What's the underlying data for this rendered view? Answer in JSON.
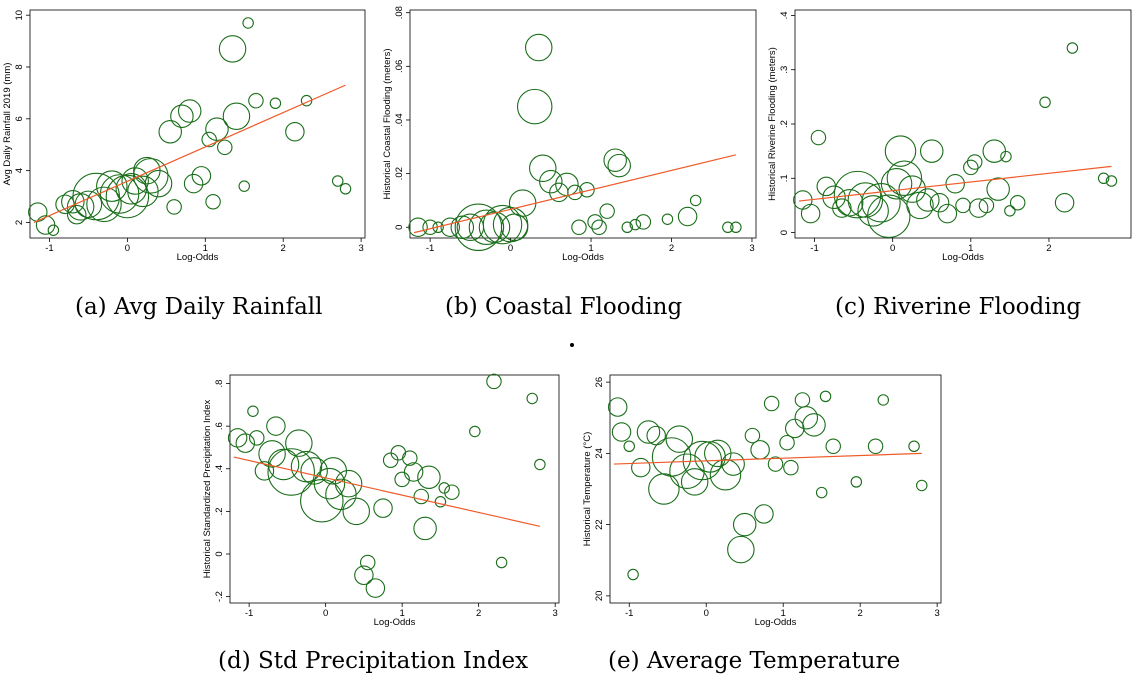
{
  "figure": {
    "separator": "."
  },
  "chart_data": [
    {
      "type": "scatter",
      "caption": "(a) Avg Daily Rainfall",
      "xlabel": "Log-Odds",
      "ylabel": "Avg Daily Rainfall 2019 (mm)",
      "xlim": [
        -1.25,
        3.05
      ],
      "ylim": [
        1.4,
        10.2
      ],
      "xticks": [
        -1,
        0,
        1,
        2,
        3
      ],
      "yticks": [
        2,
        4,
        6,
        8,
        10
      ],
      "xtick_labels": [
        "-1",
        "0",
        "1",
        "2",
        "3"
      ],
      "ytick_labels": [
        "2",
        "4",
        "6",
        "8",
        "10"
      ],
      "marker_color": "#1a6e1a",
      "fit_color": "#f05a28",
      "fit_line": [
        [
          -1.2,
          2.0
        ],
        [
          2.8,
          7.3
        ]
      ],
      "points": [
        {
          "x": -1.15,
          "y": 2.4,
          "s": 3
        },
        {
          "x": -1.05,
          "y": 1.9,
          "s": 3
        },
        {
          "x": -0.95,
          "y": 1.7,
          "s": 1
        },
        {
          "x": -0.8,
          "y": 2.7,
          "s": 3
        },
        {
          "x": -0.7,
          "y": 2.8,
          "s": 4
        },
        {
          "x": -0.65,
          "y": 2.3,
          "s": 3
        },
        {
          "x": -0.6,
          "y": 2.6,
          "s": 5
        },
        {
          "x": -0.5,
          "y": 2.7,
          "s": 5
        },
        {
          "x": -0.4,
          "y": 3.0,
          "s": 10
        },
        {
          "x": -0.3,
          "y": 2.7,
          "s": 7
        },
        {
          "x": -0.2,
          "y": 3.4,
          "s": 6
        },
        {
          "x": -0.1,
          "y": 3.1,
          "s": 8
        },
        {
          "x": 0.0,
          "y": 3.0,
          "s": 9
        },
        {
          "x": 0.05,
          "y": 3.3,
          "s": 6
        },
        {
          "x": 0.1,
          "y": 3.6,
          "s": 5
        },
        {
          "x": 0.2,
          "y": 3.2,
          "s": 6
        },
        {
          "x": 0.25,
          "y": 4.0,
          "s": 5
        },
        {
          "x": 0.3,
          "y": 3.8,
          "s": 7
        },
        {
          "x": 0.4,
          "y": 3.5,
          "s": 5
        },
        {
          "x": 0.55,
          "y": 5.5,
          "s": 4
        },
        {
          "x": 0.6,
          "y": 2.6,
          "s": 2
        },
        {
          "x": 0.7,
          "y": 6.1,
          "s": 4
        },
        {
          "x": 0.8,
          "y": 6.3,
          "s": 4
        },
        {
          "x": 0.85,
          "y": 3.5,
          "s": 3
        },
        {
          "x": 0.95,
          "y": 3.8,
          "s": 3
        },
        {
          "x": 1.05,
          "y": 5.2,
          "s": 2
        },
        {
          "x": 1.1,
          "y": 2.8,
          "s": 2
        },
        {
          "x": 1.15,
          "y": 5.6,
          "s": 4
        },
        {
          "x": 1.25,
          "y": 4.9,
          "s": 2
        },
        {
          "x": 1.35,
          "y": 8.7,
          "s": 5
        },
        {
          "x": 1.4,
          "y": 6.1,
          "s": 5
        },
        {
          "x": 1.5,
          "y": 3.4,
          "s": 1
        },
        {
          "x": 1.55,
          "y": 9.7,
          "s": 1
        },
        {
          "x": 1.65,
          "y": 6.7,
          "s": 2
        },
        {
          "x": 1.9,
          "y": 6.6,
          "s": 1
        },
        {
          "x": 2.15,
          "y": 5.5,
          "s": 3
        },
        {
          "x": 2.3,
          "y": 6.7,
          "s": 1
        },
        {
          "x": 2.7,
          "y": 3.6,
          "s": 1
        },
        {
          "x": 2.8,
          "y": 3.3,
          "s": 1
        }
      ]
    },
    {
      "type": "scatter",
      "caption": "(b) Coastal Flooding",
      "xlabel": "Log-Odds",
      "ylabel": "Historical Coastal Flooding (meters)",
      "xlim": [
        -1.25,
        3.05
      ],
      "ylim": [
        -0.004,
        0.081
      ],
      "xticks": [
        -1,
        0,
        1,
        2,
        3
      ],
      "yticks": [
        0,
        0.02,
        0.04,
        0.06,
        0.08
      ],
      "xtick_labels": [
        "-1",
        "0",
        "1",
        "2",
        "3"
      ],
      "ytick_labels": [
        "0",
        ".02",
        ".04",
        ".06",
        ".08"
      ],
      "marker_color": "#1a6e1a",
      "fit_color": "#f05a28",
      "fit_line": [
        [
          -1.2,
          -0.002
        ],
        [
          2.8,
          0.027
        ]
      ],
      "points": [
        {
          "x": -1.15,
          "y": 0.0,
          "s": 3
        },
        {
          "x": -1.0,
          "y": 0.0,
          "s": 2
        },
        {
          "x": -0.9,
          "y": 0.0,
          "s": 1
        },
        {
          "x": -0.75,
          "y": 0.0,
          "s": 3
        },
        {
          "x": -0.6,
          "y": 0.0,
          "s": 4
        },
        {
          "x": -0.5,
          "y": 0.0,
          "s": 5
        },
        {
          "x": -0.4,
          "y": 0.0,
          "s": 10
        },
        {
          "x": -0.3,
          "y": 0.0,
          "s": 7
        },
        {
          "x": -0.2,
          "y": 0.0,
          "s": 6
        },
        {
          "x": -0.1,
          "y": 0.001,
          "s": 8
        },
        {
          "x": 0.0,
          "y": 0.001,
          "s": 7
        },
        {
          "x": 0.05,
          "y": 0.0,
          "s": 5
        },
        {
          "x": 0.15,
          "y": 0.009,
          "s": 5
        },
        {
          "x": 0.3,
          "y": 0.045,
          "s": 7
        },
        {
          "x": 0.35,
          "y": 0.067,
          "s": 5
        },
        {
          "x": 0.4,
          "y": 0.022,
          "s": 5
        },
        {
          "x": 0.5,
          "y": 0.017,
          "s": 4
        },
        {
          "x": 0.6,
          "y": 0.013,
          "s": 3
        },
        {
          "x": 0.7,
          "y": 0.016,
          "s": 4
        },
        {
          "x": 0.8,
          "y": 0.013,
          "s": 2
        },
        {
          "x": 0.85,
          "y": 0.0,
          "s": 2
        },
        {
          "x": 0.95,
          "y": 0.014,
          "s": 2
        },
        {
          "x": 1.05,
          "y": 0.002,
          "s": 2
        },
        {
          "x": 1.1,
          "y": 0.0,
          "s": 2
        },
        {
          "x": 1.2,
          "y": 0.006,
          "s": 2
        },
        {
          "x": 1.3,
          "y": 0.025,
          "s": 4
        },
        {
          "x": 1.35,
          "y": 0.023,
          "s": 4
        },
        {
          "x": 1.45,
          "y": 0.0,
          "s": 1
        },
        {
          "x": 1.55,
          "y": 0.001,
          "s": 1
        },
        {
          "x": 1.65,
          "y": 0.002,
          "s": 2
        },
        {
          "x": 1.95,
          "y": 0.003,
          "s": 1
        },
        {
          "x": 2.2,
          "y": 0.004,
          "s": 3
        },
        {
          "x": 2.3,
          "y": 0.01,
          "s": 1
        },
        {
          "x": 2.7,
          "y": 0.0,
          "s": 1
        },
        {
          "x": 2.8,
          "y": 0.0,
          "s": 1
        }
      ]
    },
    {
      "type": "scatter",
      "caption": "(c) Riverine Flooding",
      "xlabel": "Log-Odds",
      "ylabel": "Historical Riverine Flooding (meters)",
      "xlim": [
        -1.25,
        3.05
      ],
      "ylim": [
        -0.01,
        0.41
      ],
      "xticks": [
        -1,
        0,
        1,
        2
      ],
      "yticks": [
        0,
        0.1,
        0.2,
        0.3,
        0.4
      ],
      "xtick_labels": [
        "-1",
        "0",
        "1",
        "2"
      ],
      "ytick_labels": [
        "0",
        ".1",
        ".2",
        ".3",
        ".4"
      ],
      "marker_color": "#1a6e1a",
      "fit_color": "#f05a28",
      "fit_line": [
        [
          -1.2,
          0.058
        ],
        [
          2.8,
          0.122
        ]
      ],
      "points": [
        {
          "x": -1.15,
          "y": 0.06,
          "s": 3
        },
        {
          "x": -1.05,
          "y": 0.035,
          "s": 3
        },
        {
          "x": -0.95,
          "y": 0.175,
          "s": 2
        },
        {
          "x": -0.85,
          "y": 0.085,
          "s": 3
        },
        {
          "x": -0.75,
          "y": 0.065,
          "s": 4
        },
        {
          "x": -0.65,
          "y": 0.045,
          "s": 3
        },
        {
          "x": -0.55,
          "y": 0.055,
          "s": 5
        },
        {
          "x": -0.45,
          "y": 0.07,
          "s": 10
        },
        {
          "x": -0.35,
          "y": 0.06,
          "s": 7
        },
        {
          "x": -0.25,
          "y": 0.04,
          "s": 6
        },
        {
          "x": -0.15,
          "y": 0.055,
          "s": 8
        },
        {
          "x": -0.05,
          "y": 0.03,
          "s": 9
        },
        {
          "x": 0.05,
          "y": 0.09,
          "s": 6
        },
        {
          "x": 0.1,
          "y": 0.15,
          "s": 6
        },
        {
          "x": 0.15,
          "y": 0.1,
          "s": 7
        },
        {
          "x": 0.25,
          "y": 0.08,
          "s": 5
        },
        {
          "x": 0.35,
          "y": 0.05,
          "s": 5
        },
        {
          "x": 0.45,
          "y": 0.06,
          "s": 4
        },
        {
          "x": 0.5,
          "y": 0.15,
          "s": 4
        },
        {
          "x": 0.6,
          "y": 0.055,
          "s": 3
        },
        {
          "x": 0.7,
          "y": 0.035,
          "s": 3
        },
        {
          "x": 0.8,
          "y": 0.09,
          "s": 3
        },
        {
          "x": 0.9,
          "y": 0.05,
          "s": 2
        },
        {
          "x": 1.0,
          "y": 0.12,
          "s": 2
        },
        {
          "x": 1.05,
          "y": 0.13,
          "s": 2
        },
        {
          "x": 1.1,
          "y": 0.045,
          "s": 3
        },
        {
          "x": 1.2,
          "y": 0.05,
          "s": 2
        },
        {
          "x": 1.3,
          "y": 0.15,
          "s": 4
        },
        {
          "x": 1.35,
          "y": 0.08,
          "s": 4
        },
        {
          "x": 1.45,
          "y": 0.14,
          "s": 1
        },
        {
          "x": 1.5,
          "y": 0.04,
          "s": 1
        },
        {
          "x": 1.6,
          "y": 0.055,
          "s": 2
        },
        {
          "x": 1.95,
          "y": 0.24,
          "s": 1
        },
        {
          "x": 2.2,
          "y": 0.055,
          "s": 3
        },
        {
          "x": 2.3,
          "y": 0.34,
          "s": 1
        },
        {
          "x": 2.7,
          "y": 0.1,
          "s": 1
        },
        {
          "x": 2.8,
          "y": 0.095,
          "s": 1
        }
      ]
    },
    {
      "type": "scatter",
      "caption": "(d) Std Precipitation Index",
      "xlabel": "Log-Odds",
      "ylabel": "Historical Standardized Precipitation Index",
      "xlim": [
        -1.25,
        3.05
      ],
      "ylim": [
        -0.23,
        0.84
      ],
      "xticks": [
        -1,
        0,
        1,
        2,
        3
      ],
      "yticks": [
        -0.2,
        0,
        0.2,
        0.4,
        0.6,
        0.8
      ],
      "xtick_labels": [
        "-1",
        "0",
        "1",
        "2",
        "3"
      ],
      "ytick_labels": [
        "-.2",
        "0",
        ".2",
        ".4",
        ".6",
        ".8"
      ],
      "marker_color": "#1a6e1a",
      "fit_color": "#f05a28",
      "fit_line": [
        [
          -1.2,
          0.455
        ],
        [
          2.8,
          0.13
        ]
      ],
      "points": [
        {
          "x": -1.15,
          "y": 0.545,
          "s": 3
        },
        {
          "x": -1.05,
          "y": 0.52,
          "s": 3
        },
        {
          "x": -0.95,
          "y": 0.67,
          "s": 1
        },
        {
          "x": -0.9,
          "y": 0.545,
          "s": 2
        },
        {
          "x": -0.8,
          "y": 0.39,
          "s": 3
        },
        {
          "x": -0.7,
          "y": 0.47,
          "s": 5
        },
        {
          "x": -0.65,
          "y": 0.6,
          "s": 3
        },
        {
          "x": -0.55,
          "y": 0.42,
          "s": 6
        },
        {
          "x": -0.45,
          "y": 0.385,
          "s": 10
        },
        {
          "x": -0.35,
          "y": 0.52,
          "s": 5
        },
        {
          "x": -0.25,
          "y": 0.41,
          "s": 6
        },
        {
          "x": -0.15,
          "y": 0.39,
          "s": 5
        },
        {
          "x": -0.05,
          "y": 0.25,
          "s": 9
        },
        {
          "x": 0.05,
          "y": 0.33,
          "s": 6
        },
        {
          "x": 0.1,
          "y": 0.39,
          "s": 5
        },
        {
          "x": 0.2,
          "y": 0.28,
          "s": 6
        },
        {
          "x": 0.3,
          "y": 0.33,
          "s": 5
        },
        {
          "x": 0.4,
          "y": 0.2,
          "s": 5
        },
        {
          "x": 0.5,
          "y": -0.1,
          "s": 3
        },
        {
          "x": 0.55,
          "y": -0.04,
          "s": 2
        },
        {
          "x": 0.65,
          "y": -0.16,
          "s": 3
        },
        {
          "x": 0.75,
          "y": 0.215,
          "s": 3
        },
        {
          "x": 0.85,
          "y": 0.44,
          "s": 2
        },
        {
          "x": 0.95,
          "y": 0.475,
          "s": 2
        },
        {
          "x": 1.0,
          "y": 0.35,
          "s": 2
        },
        {
          "x": 1.1,
          "y": 0.45,
          "s": 2
        },
        {
          "x": 1.15,
          "y": 0.385,
          "s": 3
        },
        {
          "x": 1.25,
          "y": 0.27,
          "s": 2
        },
        {
          "x": 1.3,
          "y": 0.12,
          "s": 4
        },
        {
          "x": 1.35,
          "y": 0.36,
          "s": 4
        },
        {
          "x": 1.5,
          "y": 0.245,
          "s": 1
        },
        {
          "x": 1.55,
          "y": 0.31,
          "s": 1
        },
        {
          "x": 1.65,
          "y": 0.29,
          "s": 2
        },
        {
          "x": 1.95,
          "y": 0.575,
          "s": 1
        },
        {
          "x": 2.2,
          "y": 0.81,
          "s": 2
        },
        {
          "x": 2.3,
          "y": -0.04,
          "s": 1
        },
        {
          "x": 2.7,
          "y": 0.73,
          "s": 1
        },
        {
          "x": 2.8,
          "y": 0.42,
          "s": 1
        }
      ]
    },
    {
      "type": "scatter",
      "caption": "(e) Average Temperature",
      "xlabel": "Log-Odds",
      "ylabel": "Historical Temperature (°C)",
      "xlim": [
        -1.25,
        3.05
      ],
      "ylim": [
        19.8,
        26.2
      ],
      "xticks": [
        -1,
        0,
        1,
        2,
        3
      ],
      "yticks": [
        20,
        22,
        24,
        26
      ],
      "xtick_labels": [
        "-1",
        "0",
        "1",
        "2",
        "3"
      ],
      "ytick_labels": [
        "20",
        "22",
        "24",
        "26"
      ],
      "marker_color": "#1a6e1a",
      "fit_color": "#f05a28",
      "fit_line": [
        [
          -1.2,
          23.7
        ],
        [
          2.8,
          24.0
        ]
      ],
      "points": [
        {
          "x": -1.15,
          "y": 25.3,
          "s": 3
        },
        {
          "x": -1.1,
          "y": 24.6,
          "s": 3
        },
        {
          "x": -1.0,
          "y": 24.2,
          "s": 1
        },
        {
          "x": -0.95,
          "y": 20.6,
          "s": 1
        },
        {
          "x": -0.85,
          "y": 23.6,
          "s": 3
        },
        {
          "x": -0.75,
          "y": 24.6,
          "s": 4
        },
        {
          "x": -0.65,
          "y": 24.5,
          "s": 3
        },
        {
          "x": -0.55,
          "y": 23.0,
          "s": 6
        },
        {
          "x": -0.45,
          "y": 23.9,
          "s": 8
        },
        {
          "x": -0.35,
          "y": 24.4,
          "s": 5
        },
        {
          "x": -0.25,
          "y": 23.5,
          "s": 7
        },
        {
          "x": -0.15,
          "y": 23.2,
          "s": 5
        },
        {
          "x": -0.05,
          "y": 23.8,
          "s": 8
        },
        {
          "x": 0.05,
          "y": 23.9,
          "s": 6
        },
        {
          "x": 0.15,
          "y": 24.0,
          "s": 5
        },
        {
          "x": 0.25,
          "y": 23.4,
          "s": 6
        },
        {
          "x": 0.35,
          "y": 23.7,
          "s": 4
        },
        {
          "x": 0.45,
          "y": 21.3,
          "s": 5
        },
        {
          "x": 0.5,
          "y": 22.0,
          "s": 4
        },
        {
          "x": 0.6,
          "y": 24.5,
          "s": 2
        },
        {
          "x": 0.7,
          "y": 24.1,
          "s": 3
        },
        {
          "x": 0.75,
          "y": 22.3,
          "s": 3
        },
        {
          "x": 0.85,
          "y": 25.4,
          "s": 2
        },
        {
          "x": 0.9,
          "y": 23.7,
          "s": 2
        },
        {
          "x": 1.05,
          "y": 24.3,
          "s": 2
        },
        {
          "x": 1.1,
          "y": 23.6,
          "s": 2
        },
        {
          "x": 1.15,
          "y": 24.7,
          "s": 3
        },
        {
          "x": 1.25,
          "y": 25.5,
          "s": 2
        },
        {
          "x": 1.3,
          "y": 25.0,
          "s": 4
        },
        {
          "x": 1.4,
          "y": 24.8,
          "s": 4
        },
        {
          "x": 1.5,
          "y": 22.9,
          "s": 1
        },
        {
          "x": 1.55,
          "y": 25.6,
          "s": 1
        },
        {
          "x": 1.65,
          "y": 24.2,
          "s": 2
        },
        {
          "x": 1.95,
          "y": 23.2,
          "s": 1
        },
        {
          "x": 2.2,
          "y": 24.2,
          "s": 2
        },
        {
          "x": 2.3,
          "y": 25.5,
          "s": 1
        },
        {
          "x": 2.7,
          "y": 24.2,
          "s": 1
        },
        {
          "x": 2.8,
          "y": 23.1,
          "s": 1
        }
      ]
    }
  ]
}
